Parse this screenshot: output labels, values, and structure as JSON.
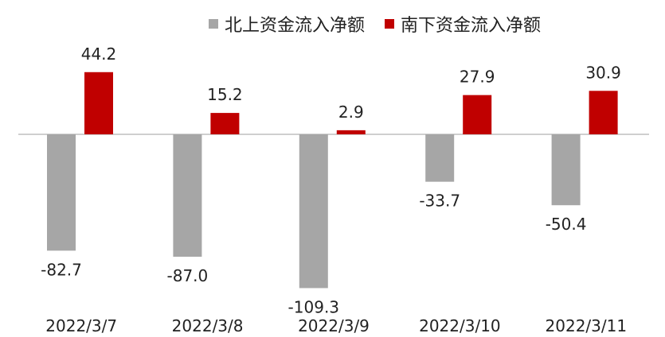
{
  "chart_data": {
    "type": "bar",
    "categories": [
      "2022/3/7",
      "2022/3/8",
      "2022/3/9",
      "2022/3/10",
      "2022/3/11"
    ],
    "series": [
      {
        "name": "北上资金流入净额",
        "color": "#A6A6A6",
        "values": [
          -82.7,
          -87.0,
          -109.3,
          -33.7,
          -50.4
        ]
      },
      {
        "name": "南下资金流入净额",
        "color": "#C00000",
        "values": [
          44.2,
          15.2,
          2.9,
          27.9,
          30.9
        ]
      }
    ],
    "data_labels": {
      "north": [
        "-82.7",
        "-87.0",
        "-109.3",
        "-33.7",
        "-50.4"
      ],
      "south": [
        "44.2",
        "15.2",
        "2.9",
        "27.9",
        "30.9"
      ]
    },
    "legend_position": "top",
    "grid": false
  }
}
